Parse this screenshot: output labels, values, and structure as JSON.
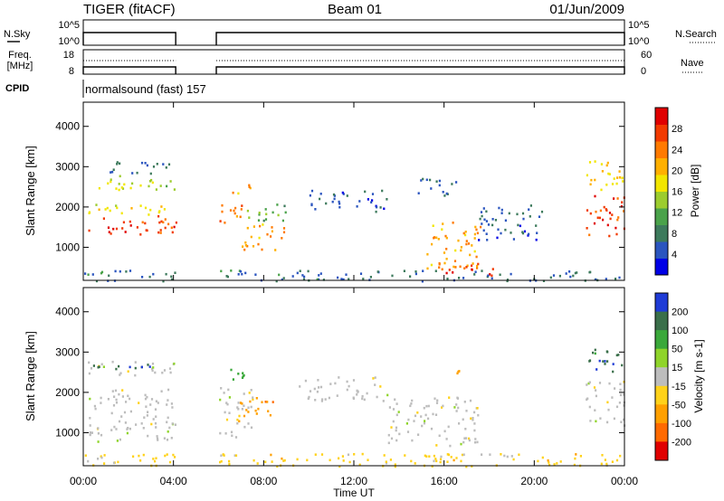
{
  "header": {
    "radar": "TIGER (fitACF)",
    "beam": "Beam 01",
    "date": "01/Jun/2009"
  },
  "strip_panels": {
    "nsky": {
      "label": "N.Sky",
      "ticks": [
        "10^5",
        "10^0"
      ]
    },
    "nsearch": {
      "label": "N.Search",
      "ticks": [
        "10^5",
        "10^0"
      ]
    },
    "freq": {
      "label_line1": "Freq.",
      "label_line2": "[MHz]",
      "ticks": [
        "18",
        "8"
      ]
    },
    "nave": {
      "label": "Nave",
      "ticks": [
        "60",
        "0"
      ]
    },
    "cpid": {
      "label": "CPID",
      "value": "normalsound (fast) 157"
    }
  },
  "chart_data": [
    {
      "type": "heatmap",
      "name": "power",
      "xlabel": "Time UT",
      "ylabel": "Slant Range [km]",
      "x_ticks": [
        "00:00",
        "04:00",
        "08:00",
        "12:00",
        "16:00",
        "20:00",
        "00:00"
      ],
      "xlim_hours": [
        0,
        24
      ],
      "ylim_km": [
        180,
        4600
      ],
      "y_ticks": [
        1000,
        2000,
        3000,
        4000
      ],
      "data_gap_hours": [
        4.1,
        5.9
      ],
      "colorbar": {
        "label": "Power [dB]",
        "ticks": [
          4,
          8,
          12,
          16,
          20,
          24,
          28
        ],
        "range": [
          0,
          32
        ],
        "colors": [
          "#0000e6",
          "#2b55bf",
          "#3d7a5c",
          "#4aa24a",
          "#9ccc2e",
          "#f2e600",
          "#ffb000",
          "#ff7a00",
          "#f23a00",
          "#e00000"
        ]
      },
      "regions": [
        {
          "t": [
            0.2,
            4.1
          ],
          "r": [
            1300,
            1800
          ],
          "level": 27
        },
        {
          "t": [
            0.2,
            4.1
          ],
          "r": [
            1800,
            2100
          ],
          "level": 17
        },
        {
          "t": [
            0.2,
            4.1
          ],
          "r": [
            2450,
            2800
          ],
          "level": 15
        },
        {
          "t": [
            0.5,
            3.8
          ],
          "r": [
            2850,
            3150
          ],
          "level": 7
        },
        {
          "t": [
            6.0,
            7.0
          ],
          "r": [
            1500,
            2200
          ],
          "level": 24
        },
        {
          "t": [
            6.6,
            7.5
          ],
          "r": [
            2350,
            2650
          ],
          "level": 21
        },
        {
          "t": [
            7.0,
            8.9
          ],
          "r": [
            950,
            1650
          ],
          "level": 22
        },
        {
          "t": [
            7.2,
            9.0
          ],
          "r": [
            1650,
            2150
          ],
          "level": 11
        },
        {
          "t": [
            10.0,
            13.5
          ],
          "r": [
            1900,
            2450
          ],
          "level": 6
        },
        {
          "t": [
            14.5,
            16.5
          ],
          "r": [
            2300,
            2750
          ],
          "level": 6
        },
        {
          "t": [
            15.2,
            17.6
          ],
          "r": [
            500,
            1650
          ],
          "level": 21
        },
        {
          "t": [
            15.6,
            18.3
          ],
          "r": [
            300,
            650
          ],
          "level": 28
        },
        {
          "t": [
            17.5,
            20.5
          ],
          "r": [
            1200,
            2100
          ],
          "level": 6
        },
        {
          "t": [
            22.2,
            24.0
          ],
          "r": [
            1300,
            2300
          ],
          "level": 27
        },
        {
          "t": [
            22.3,
            24.0
          ],
          "r": [
            2400,
            3200
          ],
          "level": 19
        },
        {
          "t": [
            0.0,
            24.0
          ],
          "r": [
            180,
            450
          ],
          "level": 7
        }
      ]
    },
    {
      "type": "heatmap",
      "name": "velocity",
      "xlabel": "Time UT",
      "ylabel": "Slant Range [km]",
      "x_ticks": [
        "00:00",
        "04:00",
        "08:00",
        "12:00",
        "16:00",
        "20:00",
        "00:00"
      ],
      "xlim_hours": [
        0,
        24
      ],
      "ylim_km": [
        180,
        4600
      ],
      "y_ticks": [
        1000,
        2000,
        3000,
        4000
      ],
      "data_gap_hours": [
        4.1,
        5.9
      ],
      "colorbar": {
        "label": "Velocity [m s-1]",
        "ticks": [
          "200",
          "100",
          "50",
          "15",
          "-15",
          "-50",
          "-100",
          "-200"
        ],
        "colors": [
          "#1f3bd6",
          "#3a6f4a",
          "#3aa83a",
          "#8fd42a",
          "#bdbdbd",
          "#ffd21a",
          "#ffa000",
          "#ff6a00",
          "#e00000"
        ]
      },
      "regions": [
        {
          "t": [
            0.2,
            4.1
          ],
          "r": [
            800,
            2100
          ],
          "level": 0
        },
        {
          "t": [
            0.2,
            4.1
          ],
          "r": [
            2450,
            2800
          ],
          "level": 0
        },
        {
          "t": [
            0.3,
            3.5
          ],
          "r": [
            2600,
            2800
          ],
          "level": 3
        },
        {
          "t": [
            6.0,
            7.5
          ],
          "r": [
            900,
            2200
          ],
          "level": 0
        },
        {
          "t": [
            6.8,
            8.5
          ],
          "r": [
            1300,
            1900
          ],
          "level": -2
        },
        {
          "t": [
            6.5,
            7.6
          ],
          "r": [
            2300,
            2700
          ],
          "level": 2
        },
        {
          "t": [
            9.5,
            13.5
          ],
          "r": [
            1800,
            2400
          ],
          "level": 0
        },
        {
          "t": [
            13.5,
            17.5
          ],
          "r": [
            700,
            1900
          ],
          "level": 0
        },
        {
          "t": [
            16.5,
            17.3
          ],
          "r": [
            2500,
            2750
          ],
          "level": -2
        },
        {
          "t": [
            22.2,
            24.0
          ],
          "r": [
            1200,
            2300
          ],
          "level": 0
        },
        {
          "t": [
            22.2,
            24.0
          ],
          "r": [
            2500,
            3100
          ],
          "level": 3
        },
        {
          "t": [
            0.0,
            24.0
          ],
          "r": [
            180,
            500
          ],
          "level": -1
        }
      ]
    }
  ]
}
